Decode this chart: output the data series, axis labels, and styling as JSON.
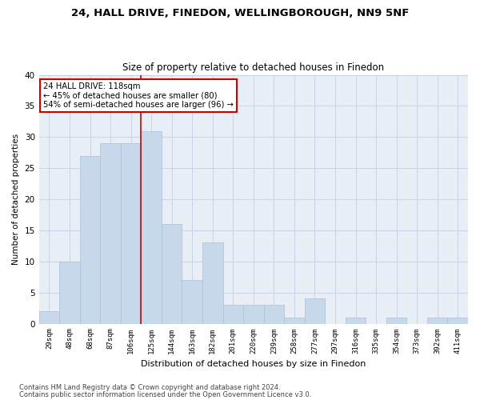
{
  "title1": "24, HALL DRIVE, FINEDON, WELLINGBOROUGH, NN9 5NF",
  "title2": "Size of property relative to detached houses in Finedon",
  "xlabel": "Distribution of detached houses by size in Finedon",
  "ylabel": "Number of detached properties",
  "categories": [
    "29sqm",
    "48sqm",
    "68sqm",
    "87sqm",
    "106sqm",
    "125sqm",
    "144sqm",
    "163sqm",
    "182sqm",
    "201sqm",
    "220sqm",
    "239sqm",
    "258sqm",
    "277sqm",
    "297sqm",
    "316sqm",
    "335sqm",
    "354sqm",
    "373sqm",
    "392sqm",
    "411sqm"
  ],
  "values": [
    2,
    10,
    27,
    29,
    29,
    31,
    16,
    7,
    13,
    3,
    3,
    3,
    1,
    4,
    0,
    1,
    0,
    1,
    0,
    1,
    1
  ],
  "bar_color": "#c8d8eb",
  "bar_edge_color": "#a8c0d8",
  "grid_color": "#c8d4e4",
  "background_color": "#e8eef6",
  "vline_color": "#cc0000",
  "vline_index": 4.5,
  "annotation_text": "24 HALL DRIVE: 118sqm\n← 45% of detached houses are smaller (80)\n54% of semi-detached houses are larger (96) →",
  "annotation_box_color": "#ffffff",
  "annotation_box_edge": "#cc0000",
  "ylim": [
    0,
    40
  ],
  "yticks": [
    0,
    5,
    10,
    15,
    20,
    25,
    30,
    35,
    40
  ],
  "footnote1": "Contains HM Land Registry data © Crown copyright and database right 2024.",
  "footnote2": "Contains public sector information licensed under the Open Government Licence v3.0."
}
